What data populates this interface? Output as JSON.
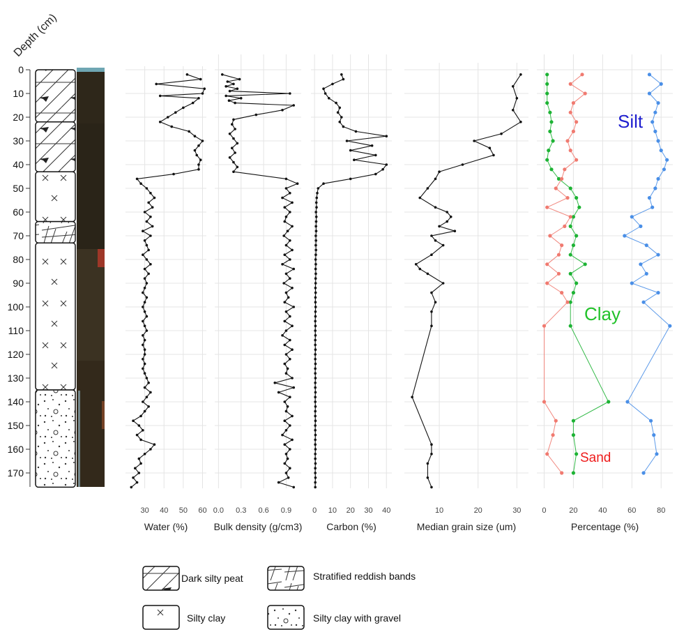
{
  "chart_data": {
    "type": "line",
    "depth_axis": {
      "label": "Depth (cm)",
      "range": [
        0,
        176
      ],
      "ticks": [
        0,
        10,
        20,
        30,
        40,
        50,
        60,
        70,
        80,
        90,
        100,
        110,
        120,
        130,
        140,
        150,
        160,
        170
      ],
      "inverted": true
    },
    "lithology": {
      "units": [
        {
          "name": "Dark silty peat",
          "top": 0,
          "bottom": 22
        },
        {
          "name": "Dark silty peat",
          "top": 22,
          "bottom": 43
        },
        {
          "name": "Silty clay",
          "top": 43,
          "bottom": 64
        },
        {
          "name": "Stratified reddish bands",
          "top": 64,
          "bottom": 73
        },
        {
          "name": "Silty clay",
          "top": 73,
          "bottom": 135
        },
        {
          "name": "Silty clay with gravel",
          "top": 135,
          "bottom": 176
        }
      ],
      "legend": [
        {
          "name": "Dark silty peat",
          "pattern": "peat"
        },
        {
          "name": "Stratified reddish bands",
          "pattern": "strat"
        },
        {
          "name": "Silty clay",
          "pattern": "clay"
        },
        {
          "name": "Silty clay with gravel",
          "pattern": "gravel"
        }
      ]
    },
    "panels": [
      {
        "id": "water",
        "xlabel": "Water (%)",
        "xlim": [
          20,
          62
        ],
        "xticks": [
          30,
          40,
          50,
          60
        ],
        "series": [
          {
            "color": "#111111",
            "depth": [
              2,
              4,
              6,
              8,
              10,
              11,
              12,
              14,
              16,
              18,
              20,
              22,
              24,
              26,
              28,
              30,
              32,
              34,
              36,
              38,
              40,
              42,
              44,
              46,
              48,
              50,
              52,
              54,
              56,
              58,
              60,
              62,
              64,
              66,
              68,
              70,
              72,
              74,
              76,
              78,
              80,
              82,
              84,
              86,
              88,
              90,
              92,
              94,
              96,
              98,
              100,
              102,
              104,
              106,
              108,
              110,
              112,
              114,
              116,
              118,
              120,
              122,
              124,
              126,
              128,
              130,
              132,
              134,
              136,
              138,
              140,
              142,
              144,
              146,
              148,
              150,
              152,
              154,
              156,
              158,
              160,
              162,
              164,
              166,
              168,
              170,
              172,
              174,
              176
            ],
            "values": [
              52,
              59,
              36,
              61,
              60,
              38,
              58,
              55,
              50,
              46,
              42,
              38,
              44,
              53,
              56,
              60,
              58,
              56,
              57,
              59,
              58,
              58,
              45,
              26,
              28,
              31,
              33,
              35,
              32,
              34,
              30,
              33,
              31,
              34,
              29,
              33,
              30,
              31,
              32,
              29,
              31,
              33,
              30,
              32,
              30,
              31,
              30,
              29,
              31,
              30,
              29,
              30,
              31,
              29,
              30,
              31,
              29,
              30,
              29,
              30,
              30,
              29,
              30,
              29,
              30,
              31,
              32,
              30,
              33,
              31,
              29,
              32,
              30,
              28,
              24,
              27,
              29,
              26,
              28,
              35,
              33,
              30,
              27,
              28,
              25,
              27,
              24,
              26,
              23
            ]
          }
        ]
      },
      {
        "id": "bulk_density",
        "xlabel": "Bulk density (g/cm3)",
        "xlim": [
          -0.05,
          1.1
        ],
        "xticks": [
          0.0,
          0.3,
          0.6,
          0.9
        ],
        "series": [
          {
            "color": "#111111",
            "depth": [
              2,
              4,
              5,
              6,
              7,
              8,
              9,
              10,
              11,
              12,
              13,
              14,
              15,
              17,
              19,
              21,
              23,
              25,
              27,
              29,
              31,
              33,
              35,
              37,
              39,
              41,
              43,
              46,
              48,
              50,
              52,
              54,
              56,
              58,
              60,
              62,
              64,
              66,
              68,
              70,
              72,
              74,
              76,
              78,
              80,
              82,
              84,
              86,
              88,
              90,
              92,
              94,
              96,
              98,
              100,
              102,
              104,
              106,
              108,
              110,
              112,
              114,
              116,
              118,
              120,
              122,
              124,
              126,
              128,
              130,
              132,
              134,
              136,
              138,
              140,
              142,
              144,
              146,
              148,
              150,
              152,
              154,
              156,
              158,
              160,
              162,
              164,
              166,
              168,
              170,
              172,
              174,
              176
            ],
            "values": [
              0.05,
              0.28,
              0.12,
              0.2,
              0.1,
              0.25,
              0.15,
              0.95,
              0.1,
              0.3,
              0.14,
              0.22,
              1.0,
              0.85,
              0.5,
              0.2,
              0.18,
              0.22,
              0.15,
              0.2,
              0.25,
              0.18,
              0.22,
              0.15,
              0.2,
              0.25,
              0.2,
              0.9,
              1.05,
              0.9,
              0.95,
              0.85,
              0.98,
              0.88,
              0.95,
              0.9,
              0.88,
              0.98,
              0.92,
              0.87,
              0.95,
              0.9,
              0.98,
              0.88,
              0.95,
              0.85,
              1.0,
              0.9,
              0.95,
              0.87,
              0.98,
              0.9,
              0.93,
              0.88,
              1.0,
              0.9,
              0.95,
              0.88,
              0.98,
              0.9,
              0.85,
              0.95,
              0.88,
              0.98,
              0.9,
              0.95,
              0.88,
              0.92,
              0.9,
              0.98,
              0.75,
              1.0,
              0.8,
              0.95,
              0.88,
              0.92,
              0.9,
              0.98,
              0.88,
              0.95,
              0.9,
              0.85,
              0.98,
              0.88,
              0.95,
              0.9,
              0.92,
              0.88,
              0.95,
              0.9,
              0.93,
              0.8,
              1.0
            ]
          }
        ]
      },
      {
        "id": "carbon",
        "xlabel": "Carbon (%)",
        "xlim": [
          -2,
          43
        ],
        "xticks": [
          0,
          10,
          20,
          30,
          40
        ],
        "series": [
          {
            "color": "#111111",
            "depth": [
              2,
              4,
              6,
              8,
              10,
              12,
              14,
              16,
              18,
              20,
              22,
              24,
              26,
              28,
              30,
              32,
              34,
              36,
              38,
              40,
              42,
              44,
              46,
              48,
              50,
              52,
              54,
              56,
              58,
              60,
              62,
              64,
              66,
              68,
              70,
              72,
              74,
              76,
              78,
              80,
              82,
              84,
              86,
              88,
              90,
              92,
              94,
              96,
              98,
              100,
              102,
              104,
              106,
              108,
              110,
              112,
              114,
              116,
              118,
              120,
              122,
              124,
              126,
              128,
              130,
              132,
              134,
              136,
              138,
              140,
              142,
              144,
              146,
              148,
              150,
              152,
              154,
              156,
              158,
              160,
              162,
              164,
              166,
              168,
              170,
              172,
              174,
              176
            ],
            "values": [
              15,
              16,
              10,
              5,
              6,
              8,
              12,
              14,
              13,
              15,
              14,
              16,
              23,
              40,
              18,
              32,
              20,
              34,
              22,
              40,
              38,
              34,
              20,
              5,
              2,
              1.5,
              1.2,
              1.0,
              1.1,
              0.8,
              1.0,
              0.9,
              0.8,
              0.9,
              0.7,
              0.8,
              0.7,
              0.8,
              0.7,
              0.6,
              0.7,
              0.6,
              0.7,
              0.6,
              0.6,
              0.5,
              0.6,
              0.5,
              0.5,
              0.6,
              0.5,
              0.5,
              0.4,
              0.5,
              0.4,
              0.5,
              0.4,
              0.4,
              0.5,
              0.4,
              0.4,
              0.5,
              0.4,
              0.4,
              0.5,
              0.4,
              0.4,
              0.5,
              0.4,
              0.4,
              0.5,
              0.4,
              0.4,
              0.5,
              0.4,
              0.4,
              0.5,
              0.4,
              0.4,
              0.5,
              0.4,
              0.4,
              0.5,
              0.4,
              0.4,
              0.5,
              0.4,
              0.4
            ]
          }
        ]
      },
      {
        "id": "median_grain",
        "xlabel": "Median grain size (um)",
        "xlim": [
          1,
          33
        ],
        "xticks": [
          10,
          20,
          30
        ],
        "series": [
          {
            "color": "#111111",
            "depth": [
              2,
              7,
              12,
              17,
              22,
              27,
              30,
              33,
              36,
              40,
              43,
              46,
              50,
              54,
              58,
              60,
              62,
              64,
              66,
              68,
              70,
              72,
              74,
              78,
              82,
              84,
              86,
              90,
              94,
              98,
              102,
              108,
              138,
              158,
              162,
              166,
              172,
              176
            ],
            "values": [
              31,
              29,
              30,
              29,
              31,
              26,
              19,
              23,
              24,
              16,
              10,
              9,
              7,
              5,
              9,
              12,
              13,
              12,
              10,
              14,
              8,
              9,
              11,
              8,
              4,
              5,
              7,
              11,
              8,
              9,
              8,
              8,
              3,
              8,
              8,
              7,
              7,
              8
            ]
          }
        ]
      },
      {
        "id": "percentage",
        "xlabel": "Percentage (%)",
        "xlim": [
          -5,
          88
        ],
        "xticks": [
          0,
          20,
          40,
          60,
          80
        ],
        "series": [
          {
            "name": "Silt",
            "color": "#4a8fe7",
            "depth": [
              2,
              6,
              10,
              14,
              18,
              22,
              26,
              30,
              34,
              38,
              42,
              46,
              50,
              54,
              58,
              62,
              66,
              70,
              74,
              78,
              82,
              86,
              90,
              94,
              98,
              108,
              140,
              148,
              154,
              162,
              170
            ],
            "values": [
              72,
              80,
              72,
              78,
              76,
              74,
              76,
              78,
              80,
              84,
              82,
              78,
              76,
              72,
              74,
              60,
              66,
              55,
              70,
              78,
              66,
              70,
              60,
              78,
              68,
              86,
              57,
              73,
              75,
              77,
              68
            ]
          },
          {
            "name": "Clay",
            "color": "#1db334",
            "depth": [
              2,
              6,
              10,
              14,
              18,
              22,
              26,
              30,
              34,
              38,
              42,
              46,
              50,
              54,
              58,
              62,
              66,
              70,
              74,
              78,
              82,
              86,
              90,
              94,
              98,
              108,
              140,
              148,
              154,
              162,
              170
            ],
            "values": [
              2,
              2,
              2,
              2,
              4,
              5,
              4,
              6,
              3,
              2,
              5,
              10,
              18,
              22,
              24,
              20,
              18,
              22,
              20,
              18,
              28,
              18,
              22,
              20,
              18,
              18,
              44,
              20,
              20,
              22,
              20
            ]
          },
          {
            "name": "Sand",
            "color": "#f07a70",
            "depth": [
              2,
              6,
              10,
              14,
              18,
              22,
              26,
              30,
              34,
              38,
              42,
              46,
              50,
              54,
              58,
              62,
              66,
              70,
              74,
              78,
              82,
              86,
              90,
              94,
              98,
              108,
              140,
              148,
              154,
              162,
              170
            ],
            "values": [
              26,
              18,
              28,
              20,
              18,
              22,
              20,
              16,
              18,
              22,
              14,
              12,
              8,
              16,
              2,
              18,
              14,
              4,
              12,
              10,
              2,
              10,
              2,
              12,
              16,
              0,
              0,
              8,
              6,
              2,
              12
            ]
          }
        ]
      }
    ],
    "annotations": [
      {
        "text": "Silt",
        "color": "#1f1fcf"
      },
      {
        "text": "Clay",
        "color": "#22c22a"
      },
      {
        "text": "Sand",
        "color": "#ee1c1c"
      }
    ]
  }
}
